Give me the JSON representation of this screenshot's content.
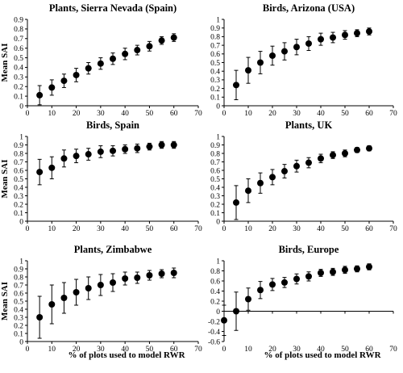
{
  "figure": {
    "xlabel": "% of plots used to model RWR",
    "ylabel": "Mean SAI"
  },
  "chart_data": [
    {
      "type": "scatter",
      "title": "Plants, Sierra Nevada (Spain)",
      "ylabel": "Mean SAI",
      "xlabel": "",
      "xlim": [
        0,
        70
      ],
      "ylim": [
        0,
        0.9
      ],
      "xticks": [
        "0",
        "10",
        "20",
        "30",
        "40",
        "50",
        "60",
        "70"
      ],
      "yticks": [
        "0",
        "0.1",
        "0.2",
        "0.3",
        "0.4",
        "0.5",
        "0.6",
        "0.7",
        "0.8",
        "0.9"
      ],
      "x": [
        5,
        10,
        15,
        20,
        25,
        30,
        35,
        40,
        45,
        50,
        55,
        60
      ],
      "y": [
        0.11,
        0.19,
        0.26,
        0.32,
        0.39,
        0.44,
        0.49,
        0.54,
        0.58,
        0.62,
        0.68,
        0.71
      ],
      "err": [
        0.1,
        0.08,
        0.07,
        0.07,
        0.06,
        0.06,
        0.06,
        0.06,
        0.05,
        0.05,
        0.04,
        0.04
      ]
    },
    {
      "type": "scatter",
      "title": "Birds, Arizona (USA)",
      "ylabel": "",
      "xlabel": "",
      "xlim": [
        0,
        70
      ],
      "ylim": [
        0,
        1
      ],
      "xticks": [
        "0",
        "10",
        "20",
        "30",
        "40",
        "50",
        "60",
        "70"
      ],
      "yticks": [
        "0",
        "0.1",
        "0.2",
        "0.3",
        "0.4",
        "0.5",
        "0.6",
        "0.7",
        "0.8",
        "0.9",
        "1"
      ],
      "x": [
        5,
        10,
        15,
        20,
        25,
        30,
        35,
        40,
        45,
        50,
        55,
        60
      ],
      "y": [
        0.24,
        0.41,
        0.5,
        0.58,
        0.63,
        0.68,
        0.72,
        0.77,
        0.79,
        0.82,
        0.84,
        0.86
      ],
      "err": [
        0.17,
        0.15,
        0.13,
        0.11,
        0.1,
        0.09,
        0.08,
        0.07,
        0.06,
        0.05,
        0.04,
        0.04
      ]
    },
    {
      "type": "scatter",
      "title": "Birds, Spain",
      "ylabel": "Mean SAI",
      "xlabel": "",
      "xlim": [
        0,
        70
      ],
      "ylim": [
        0,
        1
      ],
      "xticks": [
        "0",
        "10",
        "20",
        "30",
        "40",
        "50",
        "60",
        "70"
      ],
      "yticks": [
        "0",
        "0.1",
        "0.2",
        "0.3",
        "0.4",
        "0.5",
        "0.6",
        "0.7",
        "0.8",
        "0.9",
        "1"
      ],
      "x": [
        5,
        10,
        15,
        20,
        25,
        30,
        35,
        40,
        45,
        50,
        55,
        60
      ],
      "y": [
        0.58,
        0.63,
        0.74,
        0.77,
        0.79,
        0.82,
        0.83,
        0.85,
        0.86,
        0.88,
        0.9,
        0.9
      ],
      "err": [
        0.15,
        0.13,
        0.1,
        0.08,
        0.07,
        0.07,
        0.06,
        0.05,
        0.05,
        0.04,
        0.04,
        0.04
      ]
    },
    {
      "type": "scatter",
      "title": "Plants, UK",
      "ylabel": "",
      "xlabel": "",
      "xlim": [
        0,
        70
      ],
      "ylim": [
        0,
        1
      ],
      "xticks": [
        "0",
        "10",
        "20",
        "30",
        "40",
        "50",
        "60",
        "70"
      ],
      "yticks": [
        "0",
        "0.1",
        "0.2",
        "0.3",
        "0.4",
        "0.5",
        "0.6",
        "0.7",
        "0.8",
        "0.9",
        "1"
      ],
      "x": [
        5,
        10,
        15,
        20,
        25,
        30,
        35,
        40,
        45,
        50,
        55,
        60
      ],
      "y": [
        0.22,
        0.36,
        0.45,
        0.52,
        0.59,
        0.65,
        0.69,
        0.74,
        0.78,
        0.8,
        0.84,
        0.86
      ],
      "err": [
        0.2,
        0.14,
        0.12,
        0.09,
        0.08,
        0.07,
        0.06,
        0.05,
        0.04,
        0.04,
        0.03,
        0.03
      ]
    },
    {
      "type": "scatter",
      "title": "Plants, Zimbabwe",
      "ylabel": "Mean SAI",
      "xlabel": "% of plots used to model RWR",
      "xlim": [
        0,
        70
      ],
      "ylim": [
        0,
        1
      ],
      "xticks": [
        "0",
        "10",
        "20",
        "30",
        "40",
        "50",
        "60",
        "70"
      ],
      "yticks": [
        "0",
        "0.1",
        "0.2",
        "0.3",
        "0.4",
        "0.5",
        "0.6",
        "0.7",
        "0.8",
        "0.9",
        "1"
      ],
      "x": [
        5,
        10,
        15,
        20,
        25,
        30,
        35,
        40,
        45,
        50,
        55,
        60
      ],
      "y": [
        0.3,
        0.46,
        0.54,
        0.61,
        0.66,
        0.7,
        0.73,
        0.78,
        0.79,
        0.82,
        0.84,
        0.85
      ],
      "err": [
        0.26,
        0.24,
        0.19,
        0.16,
        0.14,
        0.13,
        0.11,
        0.08,
        0.07,
        0.06,
        0.05,
        0.06
      ]
    },
    {
      "type": "scatter",
      "title": "Birds, Europe",
      "ylabel": "",
      "xlabel": "% of plots used to model RWR",
      "xlim": [
        0,
        70
      ],
      "ylim": [
        -0.6,
        1
      ],
      "xticks": [
        "0",
        "10",
        "20",
        "30",
        "40",
        "50",
        "60",
        "70"
      ],
      "yticks": [
        "-0.6",
        "-0.4",
        "-0.2",
        "0",
        "0.2",
        "0.4",
        "0.6",
        "0.8",
        "1"
      ],
      "x": [
        0,
        5,
        10,
        15,
        20,
        25,
        30,
        35,
        40,
        45,
        50,
        55,
        60
      ],
      "y": [
        -0.18,
        0.0,
        0.24,
        0.42,
        0.53,
        0.57,
        0.64,
        0.69,
        0.76,
        0.78,
        0.82,
        0.84,
        0.88
      ],
      "err": [
        0.3,
        0.38,
        0.22,
        0.17,
        0.12,
        0.1,
        0.1,
        0.09,
        0.07,
        0.07,
        0.07,
        0.06,
        0.06
      ]
    }
  ]
}
